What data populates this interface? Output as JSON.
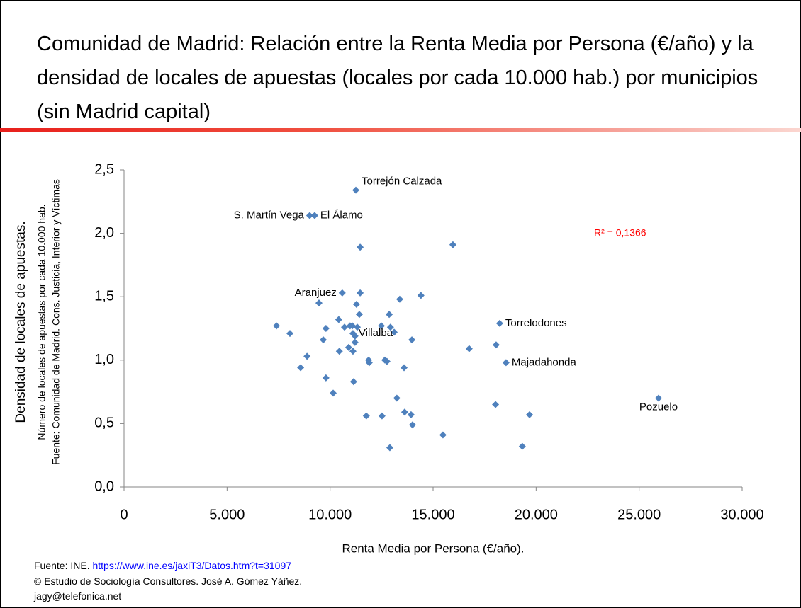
{
  "chart_data": {
    "type": "scatter",
    "title": "Comunidad de Madrid: Relación entre la Renta Media por Persona (€/año) y la densidad de locales de apuestas (locales por cada 10.000 hab.) por municipios (sin Madrid capital)",
    "x_label": "Renta Media por Persona (€/año).",
    "y_label": [
      "Densidad de locales de apuestas.",
      "Número de  locales de apuestas por cada 10.000 hab.",
      "Fuente:  Comunidad de Madrid. Cons. Justicia, Interior y Víctimas"
    ],
    "annotation": "R² = 0,1366",
    "annotation_color": "#ff0000",
    "xlim": [
      0,
      30000
    ],
    "xticks": [
      0,
      {
        "value": 5000,
        "label": "5.000"
      },
      {
        "value": 10000,
        "label": "10.000"
      },
      {
        "value": 15000,
        "label": "15.000"
      },
      {
        "value": 20000,
        "label": "20.000"
      },
      {
        "value": 25000,
        "label": "25.000"
      },
      {
        "value": 30000,
        "label": "30.000"
      }
    ],
    "ylim": [
      0,
      2.5
    ],
    "yticks": [
      {
        "value": 0,
        "label": "0,0"
      },
      {
        "value": 0.5,
        "label": "0,5"
      },
      {
        "value": 1,
        "label": "1,0"
      },
      {
        "value": 1.5,
        "label": "1,5"
      },
      {
        "value": 2,
        "label": "2,0"
      },
      {
        "value": 2.5,
        "label": "2,5"
      }
    ],
    "grid": false,
    "x": [
      11250,
      9010,
      9250,
      11460,
      15960,
      10590,
      11460,
      14410,
      9460,
      13380,
      11280,
      11420,
      12870,
      10420,
      7400,
      10700,
      10970,
      11080,
      11320,
      12490,
      12930,
      13110,
      9800,
      8050,
      11110,
      11210,
      18230,
      13970,
      9670,
      11210,
      16750,
      18060,
      10900,
      11110,
      10450,
      8880,
      11870,
      11900,
      12660,
      12760,
      18540,
      8570,
      13590,
      9800,
      11140,
      10150,
      13240,
      25940,
      18030,
      13620,
      13930,
      19680,
      11760,
      12520,
      14000,
      15480,
      12900,
      19330
    ],
    "series": [
      {
        "color": "#4f81bd",
        "values": [
          2.34,
          2.14,
          2.14,
          1.89,
          1.91,
          1.53,
          1.53,
          1.51,
          1.45,
          1.48,
          1.44,
          1.36,
          1.36,
          1.32,
          1.27,
          1.26,
          1.27,
          1.27,
          1.26,
          1.27,
          1.26,
          1.22,
          1.25,
          1.21,
          1.21,
          1.19,
          1.29,
          1.16,
          1.16,
          1.14,
          1.09,
          1.12,
          1.1,
          1.07,
          1.07,
          1.03,
          1,
          0.98,
          1,
          0.99,
          0.98,
          0.94,
          0.94,
          0.86,
          0.83,
          0.74,
          0.7,
          0.7,
          0.65,
          0.59,
          0.57,
          0.57,
          0.56,
          0.56,
          0.49,
          0.41,
          0.31,
          0.32
        ],
        "point_labels": [
          "Torrejón Calzada",
          "S. Martín Vega",
          "El Álamo",
          null,
          null,
          "Aranjuez",
          null,
          null,
          null,
          null,
          null,
          null,
          null,
          null,
          null,
          null,
          null,
          null,
          null,
          null,
          null,
          null,
          null,
          null,
          "Villalba",
          null,
          "Torrelodones",
          null,
          null,
          null,
          null,
          null,
          null,
          null,
          null,
          null,
          null,
          null,
          null,
          null,
          "Majadahonda",
          null,
          null,
          null,
          null,
          null,
          null,
          "Pozuelo",
          null,
          null,
          null,
          null,
          null,
          null,
          null,
          null,
          null,
          null
        ]
      }
    ]
  },
  "footer": {
    "source_prefix": "Fuente: INE.",
    "source_link": "https://www.ine.es/jaxiT3/Datos.htm?t=31097",
    "copyright": "© Estudio de Sociología Consultores. José A. Gómez Yáñez.",
    "email": "jagy@telefonica.net"
  }
}
